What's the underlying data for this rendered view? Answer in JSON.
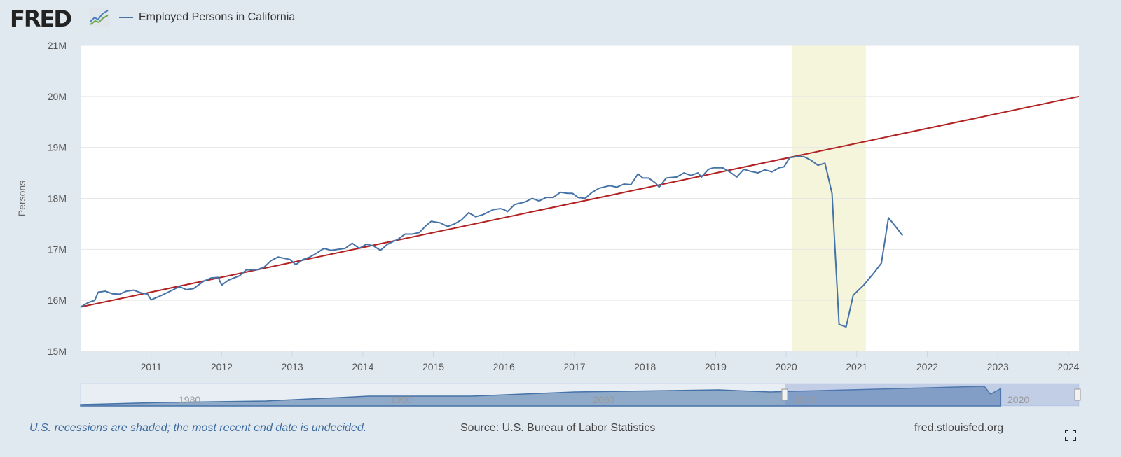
{
  "header": {
    "logo": "FRED",
    "legend_label": "Employed Persons in California",
    "logo_icon": "chart-line-icon"
  },
  "footer": {
    "note": "U.S. recessions are shaded; the most recent end date is undecided.",
    "source": "Source: U.S. Bureau of Labor Statistics",
    "site": "fred.stlouisfed.org"
  },
  "colors": {
    "series": "#4572a7",
    "trend": "#b22222",
    "recession": "#f5f5dc",
    "navigator": "#8fa9c8"
  },
  "chart_data": {
    "type": "line",
    "title": "Employed Persons in California",
    "ylabel": "Persons",
    "xlim": [
      2010.0,
      2024.15
    ],
    "ylim": [
      15,
      21
    ],
    "yticks": [
      15,
      16,
      17,
      18,
      19,
      20,
      21
    ],
    "ytick_labels": [
      "15M",
      "16M",
      "17M",
      "18M",
      "19M",
      "20M",
      "21M"
    ],
    "xticks": [
      2011,
      2012,
      2013,
      2014,
      2015,
      2016,
      2017,
      2018,
      2019,
      2020,
      2021,
      2022,
      2023,
      2024
    ],
    "xtick_labels": [
      "2011",
      "2012",
      "2013",
      "2014",
      "2015",
      "2016",
      "2017",
      "2018",
      "2019",
      "2020",
      "2021",
      "2022",
      "2023",
      "2024"
    ],
    "recession": [
      2020.08,
      2021.13
    ],
    "trend": {
      "name": "Trend",
      "points": [
        [
          2010.0,
          15.87
        ],
        [
          2024.15,
          20.0
        ]
      ]
    },
    "series": [
      {
        "name": "Employed Persons in California",
        "points": [
          [
            2010.0,
            15.87
          ],
          [
            2010.1,
            15.95
          ],
          [
            2010.2,
            16.0
          ],
          [
            2010.25,
            16.16
          ],
          [
            2010.35,
            16.18
          ],
          [
            2010.45,
            16.13
          ],
          [
            2010.55,
            16.12
          ],
          [
            2010.65,
            16.18
          ],
          [
            2010.75,
            16.2
          ],
          [
            2010.85,
            16.15
          ],
          [
            2010.95,
            16.12
          ],
          [
            2011.0,
            16.01
          ],
          [
            2011.15,
            16.1
          ],
          [
            2011.3,
            16.2
          ],
          [
            2011.4,
            16.27
          ],
          [
            2011.5,
            16.21
          ],
          [
            2011.6,
            16.23
          ],
          [
            2011.75,
            16.38
          ],
          [
            2011.85,
            16.44
          ],
          [
            2011.95,
            16.45
          ],
          [
            2012.0,
            16.3
          ],
          [
            2012.1,
            16.4
          ],
          [
            2012.25,
            16.48
          ],
          [
            2012.35,
            16.6
          ],
          [
            2012.5,
            16.6
          ],
          [
            2012.6,
            16.65
          ],
          [
            2012.7,
            16.78
          ],
          [
            2012.8,
            16.85
          ],
          [
            2012.9,
            16.82
          ],
          [
            2012.97,
            16.8
          ],
          [
            2013.05,
            16.7
          ],
          [
            2013.15,
            16.8
          ],
          [
            2013.25,
            16.85
          ],
          [
            2013.35,
            16.93
          ],
          [
            2013.45,
            17.02
          ],
          [
            2013.55,
            16.98
          ],
          [
            2013.75,
            17.02
          ],
          [
            2013.85,
            17.12
          ],
          [
            2013.95,
            17.02
          ],
          [
            2014.05,
            17.1
          ],
          [
            2014.15,
            17.07
          ],
          [
            2014.25,
            16.98
          ],
          [
            2014.35,
            17.1
          ],
          [
            2014.5,
            17.2
          ],
          [
            2014.6,
            17.3
          ],
          [
            2014.7,
            17.3
          ],
          [
            2014.8,
            17.33
          ],
          [
            2014.9,
            17.47
          ],
          [
            2014.97,
            17.55
          ],
          [
            2015.1,
            17.52
          ],
          [
            2015.2,
            17.45
          ],
          [
            2015.3,
            17.5
          ],
          [
            2015.4,
            17.58
          ],
          [
            2015.5,
            17.72
          ],
          [
            2015.6,
            17.64
          ],
          [
            2015.7,
            17.68
          ],
          [
            2015.85,
            17.78
          ],
          [
            2015.95,
            17.8
          ],
          [
            2016.0,
            17.78
          ],
          [
            2016.05,
            17.74
          ],
          [
            2016.15,
            17.88
          ],
          [
            2016.3,
            17.93
          ],
          [
            2016.4,
            18.0
          ],
          [
            2016.5,
            17.95
          ],
          [
            2016.6,
            18.02
          ],
          [
            2016.7,
            18.02
          ],
          [
            2016.8,
            18.12
          ],
          [
            2016.9,
            18.1
          ],
          [
            2016.97,
            18.1
          ],
          [
            2017.05,
            18.02
          ],
          [
            2017.15,
            18.0
          ],
          [
            2017.25,
            18.12
          ],
          [
            2017.35,
            18.2
          ],
          [
            2017.5,
            18.25
          ],
          [
            2017.6,
            18.22
          ],
          [
            2017.7,
            18.28
          ],
          [
            2017.8,
            18.27
          ],
          [
            2017.9,
            18.48
          ],
          [
            2017.97,
            18.4
          ],
          [
            2018.05,
            18.4
          ],
          [
            2018.15,
            18.3
          ],
          [
            2018.2,
            18.22
          ],
          [
            2018.3,
            18.4
          ],
          [
            2018.45,
            18.42
          ],
          [
            2018.55,
            18.5
          ],
          [
            2018.65,
            18.45
          ],
          [
            2018.75,
            18.5
          ],
          [
            2018.8,
            18.42
          ],
          [
            2018.9,
            18.57
          ],
          [
            2018.97,
            18.6
          ],
          [
            2019.1,
            18.6
          ],
          [
            2019.2,
            18.52
          ],
          [
            2019.3,
            18.42
          ],
          [
            2019.4,
            18.57
          ],
          [
            2019.5,
            18.53
          ],
          [
            2019.6,
            18.5
          ],
          [
            2019.7,
            18.56
          ],
          [
            2019.8,
            18.52
          ],
          [
            2019.9,
            18.6
          ],
          [
            2019.97,
            18.62
          ],
          [
            2020.05,
            18.8
          ],
          [
            2020.15,
            18.82
          ],
          [
            2020.25,
            18.82
          ],
          [
            2020.35,
            18.75
          ],
          [
            2020.45,
            18.65
          ],
          [
            2020.55,
            18.69
          ],
          [
            2020.65,
            18.1
          ],
          [
            2020.75,
            15.53
          ],
          [
            2020.85,
            15.48
          ],
          [
            2020.95,
            16.1
          ],
          [
            2021.1,
            16.3
          ],
          [
            2021.25,
            16.55
          ],
          [
            2021.35,
            16.73
          ],
          [
            2021.45,
            17.62
          ],
          [
            2021.55,
            17.45
          ],
          [
            2021.65,
            17.27
          ]
        ]
      }
    ],
    "navigator": {
      "xtick_labels": [
        "1980",
        "1990",
        "2000",
        "2010",
        "2020"
      ],
      "selected_range": [
        2010,
        2024
      ]
    }
  }
}
